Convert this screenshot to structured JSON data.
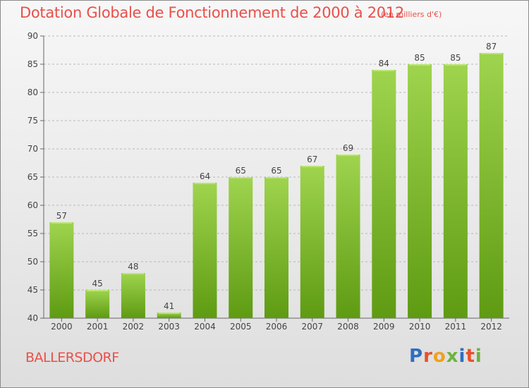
{
  "header": {
    "title": "Dotation Globale de Fonctionnement de 2000 à 2012",
    "subtitle": "(en milliers d'€)"
  },
  "footer": {
    "place": "BALLERSDORF",
    "logo_letters": [
      "P",
      "r",
      "o",
      "x",
      "i",
      "t",
      "i"
    ],
    "logo_colors": [
      "#2e6fc0",
      "#e8502a",
      "#f0a020",
      "#6db33f",
      "#2e6fc0",
      "#e8502a",
      "#6db33f"
    ]
  },
  "chart_data": {
    "type": "bar",
    "title": "Dotation Globale de Fonctionnement de 2000 à 2012",
    "subtitle": "(en milliers d'€)",
    "categories": [
      "2000",
      "2001",
      "2002",
      "2003",
      "2004",
      "2005",
      "2006",
      "2007",
      "2008",
      "2009",
      "2010",
      "2011",
      "2012"
    ],
    "values": [
      57,
      45,
      48,
      41,
      64,
      65,
      65,
      67,
      69,
      84,
      85,
      85,
      87
    ],
    "ylim": [
      40,
      90
    ],
    "yticks": [
      40,
      45,
      50,
      55,
      60,
      65,
      70,
      75,
      80,
      85,
      90
    ],
    "grid": true,
    "colors": {
      "bar_top": "#9fd44e",
      "bar_bottom": "#5e9b12",
      "grid": "#b8b8b8"
    }
  }
}
